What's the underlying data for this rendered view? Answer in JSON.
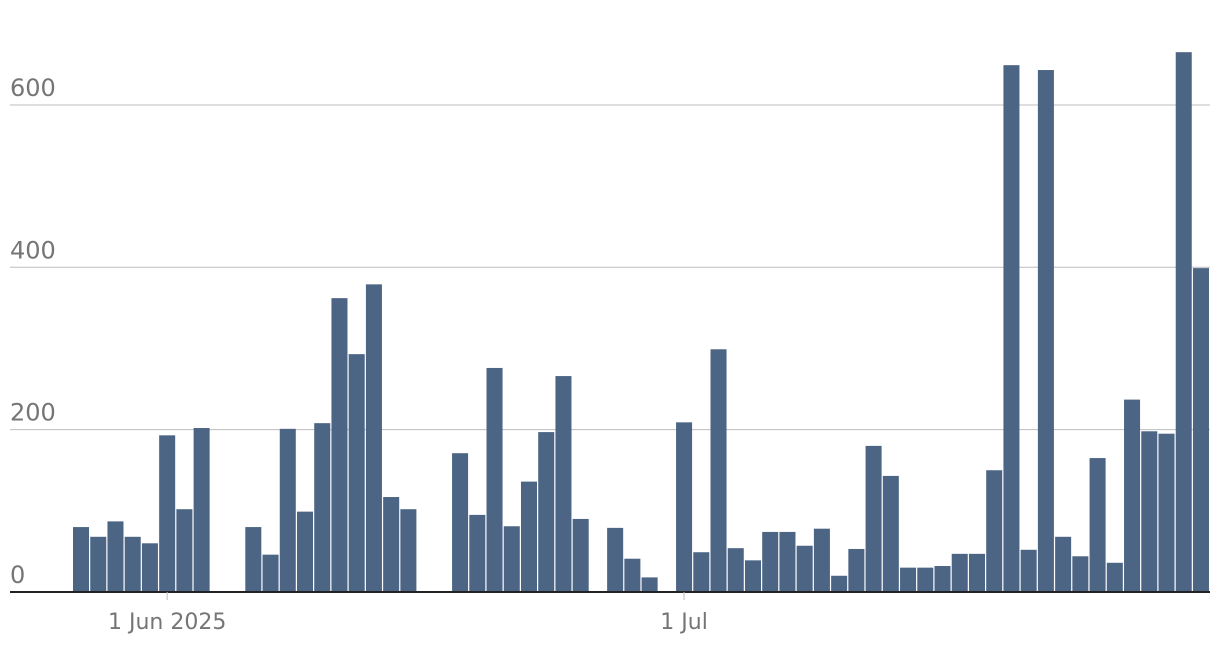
{
  "chart_data": {
    "type": "bar",
    "categories": [
      "2025-05-27",
      "2025-05-28",
      "2025-05-29",
      "2025-05-30",
      "2025-05-31",
      "2025-06-01",
      "2025-06-02",
      "2025-06-03",
      "2025-06-04",
      "2025-06-05",
      "2025-06-06",
      "2025-06-07",
      "2025-06-08",
      "2025-06-09",
      "2025-06-10",
      "2025-06-11",
      "2025-06-12",
      "2025-06-13",
      "2025-06-14",
      "2025-06-15",
      "2025-06-16",
      "2025-06-17",
      "2025-06-18",
      "2025-06-19",
      "2025-06-20",
      "2025-06-21",
      "2025-06-22",
      "2025-06-23",
      "2025-06-24",
      "2025-06-25",
      "2025-06-26",
      "2025-06-27",
      "2025-06-28",
      "2025-06-29",
      "2025-06-30",
      "2025-07-01",
      "2025-07-02",
      "2025-07-03",
      "2025-07-04",
      "2025-07-05",
      "2025-07-06",
      "2025-07-07",
      "2025-07-08",
      "2025-07-09",
      "2025-07-10",
      "2025-07-11",
      "2025-07-12",
      "2025-07-13",
      "2025-07-14",
      "2025-07-15",
      "2025-07-16",
      "2025-07-17",
      "2025-07-18",
      "2025-07-19",
      "2025-07-20",
      "2025-07-21",
      "2025-07-22",
      "2025-07-23",
      "2025-07-24",
      "2025-07-25",
      "2025-07-26",
      "2025-07-27",
      "2025-07-28",
      "2025-07-29",
      "2025-07-30",
      "2025-07-31"
    ],
    "values": [
      80,
      68,
      87,
      68,
      60,
      193,
      102,
      202,
      0,
      0,
      80,
      46,
      201,
      99,
      208,
      362,
      293,
      379,
      117,
      102,
      0,
      0,
      171,
      95,
      276,
      81,
      136,
      197,
      266,
      90,
      0,
      79,
      41,
      18,
      0,
      209,
      49,
      299,
      54,
      39,
      74,
      74,
      57,
      78,
      20,
      53,
      180,
      143,
      30,
      30,
      32,
      47,
      47,
      150,
      649,
      52,
      643,
      68,
      44,
      165,
      36,
      237,
      198,
      195,
      665,
      399
    ],
    "color": "#4d6584",
    "ylim": [
      0,
      680
    ],
    "yticks": [
      0,
      200,
      400,
      600
    ],
    "grid": true,
    "xticks": [
      {
        "value": "2025-06-01",
        "label": "1 Jun 2025"
      },
      {
        "value": "2025-07-01",
        "label": "1 Jul"
      }
    ]
  }
}
